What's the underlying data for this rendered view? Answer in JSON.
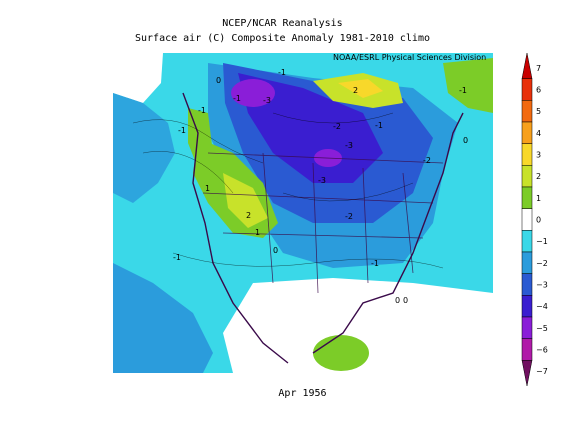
{
  "header": {
    "title": "NCEP/NCAR Reanalysis",
    "subtitle": "Surface air (C) Composite Anomaly 1981-2010 climo",
    "credit": "NOAA/ESRL Physical Sciences Division"
  },
  "footer": {
    "date": "Apr 1956"
  },
  "chart_data": {
    "type": "heatmap",
    "variable": "Surface air temperature anomaly",
    "units": "C",
    "colorbar": {
      "ticks": [
        7,
        6,
        5,
        4,
        3,
        2,
        1,
        0,
        -1,
        -2,
        -3,
        -4,
        -5,
        -6,
        -7
      ],
      "levels": [
        {
          "value": 7,
          "color": "#c80000"
        },
        {
          "value": 6,
          "color": "#e8300a"
        },
        {
          "value": 5,
          "color": "#f26a10"
        },
        {
          "value": 4,
          "color": "#f7a01c"
        },
        {
          "value": 3,
          "color": "#f8d82a"
        },
        {
          "value": 2,
          "color": "#c8e22a"
        },
        {
          "value": 1,
          "color": "#7ccc28"
        },
        {
          "value": 0,
          "color": "#ffffff"
        },
        {
          "value": -1,
          "color": "#3ad8e8"
        },
        {
          "value": -2,
          "color": "#2b9cdc"
        },
        {
          "value": -3,
          "color": "#2a5ad2"
        },
        {
          "value": -4,
          "color": "#3a1ed0"
        },
        {
          "value": -5,
          "color": "#8a1ed8"
        },
        {
          "value": -6,
          "color": "#b01aa8"
        },
        {
          "value": -7,
          "color": "#701060"
        }
      ]
    },
    "contour_labels": [
      "-1",
      "-1",
      "-1",
      "-1",
      "-1",
      "-1",
      "-2",
      "-2",
      "-2",
      "-3",
      "-3",
      "-3",
      "-1",
      "1",
      "1",
      "2",
      "2",
      "0",
      "0",
      "0",
      "0",
      "0",
      "-1"
    ]
  }
}
